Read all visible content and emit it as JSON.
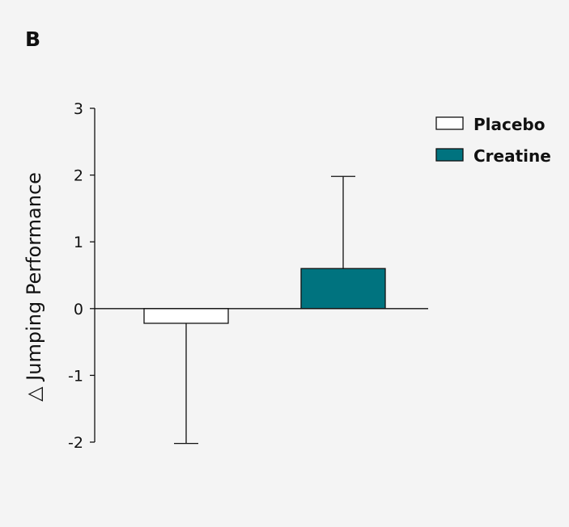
{
  "panel_label": "B",
  "colors": {
    "background": "#f4f4f4",
    "placebo_fill": "#ffffff",
    "creatine_fill": "#00737f",
    "stroke": "#111111"
  },
  "chart_data": {
    "type": "bar",
    "title": "",
    "xlabel": "",
    "ylabel": "△ Jumping Performance",
    "ylim": [
      -2,
      3
    ],
    "yticks": [
      3,
      2,
      1,
      0,
      -1,
      -2
    ],
    "ytick_labels": [
      "3",
      "2",
      "1",
      "0",
      "-1",
      "-2"
    ],
    "grid": false,
    "legend_position": "top-right",
    "categories": [
      "Placebo",
      "Creatine"
    ],
    "series": [
      {
        "name": "Placebo",
        "value": -0.22,
        "error": 1.8,
        "error_direction": "down",
        "color": "#ffffff"
      },
      {
        "name": "Creatine",
        "value": 0.6,
        "error": 1.38,
        "error_direction": "up",
        "color": "#00737f"
      }
    ]
  }
}
